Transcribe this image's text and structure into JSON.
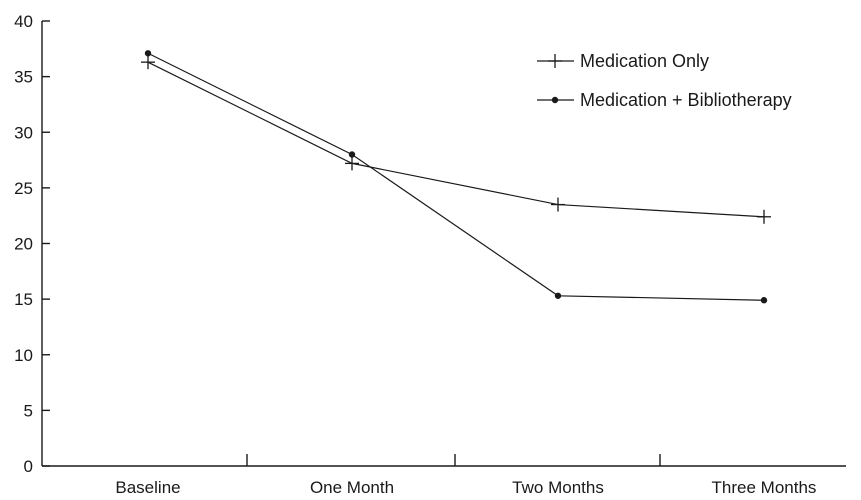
{
  "chart_data": {
    "type": "line",
    "title": "",
    "xlabel": "",
    "ylabel": "",
    "categories": [
      "Baseline",
      "One Month",
      "Two Months",
      "Three Months"
    ],
    "ylim": [
      0,
      40
    ],
    "yticks": [
      0,
      5,
      10,
      15,
      20,
      25,
      30,
      35,
      40
    ],
    "grid": false,
    "legend_position": "top-right",
    "series": [
      {
        "name": "Medication Only",
        "marker": "plus",
        "color": "#1a1a1a",
        "values": [
          36.3,
          27.2,
          23.5,
          22.4
        ]
      },
      {
        "name": "Medication + Bibliotherapy",
        "marker": "dot",
        "color": "#1a1a1a",
        "values": [
          37.1,
          28.0,
          15.3,
          14.9
        ]
      }
    ]
  }
}
